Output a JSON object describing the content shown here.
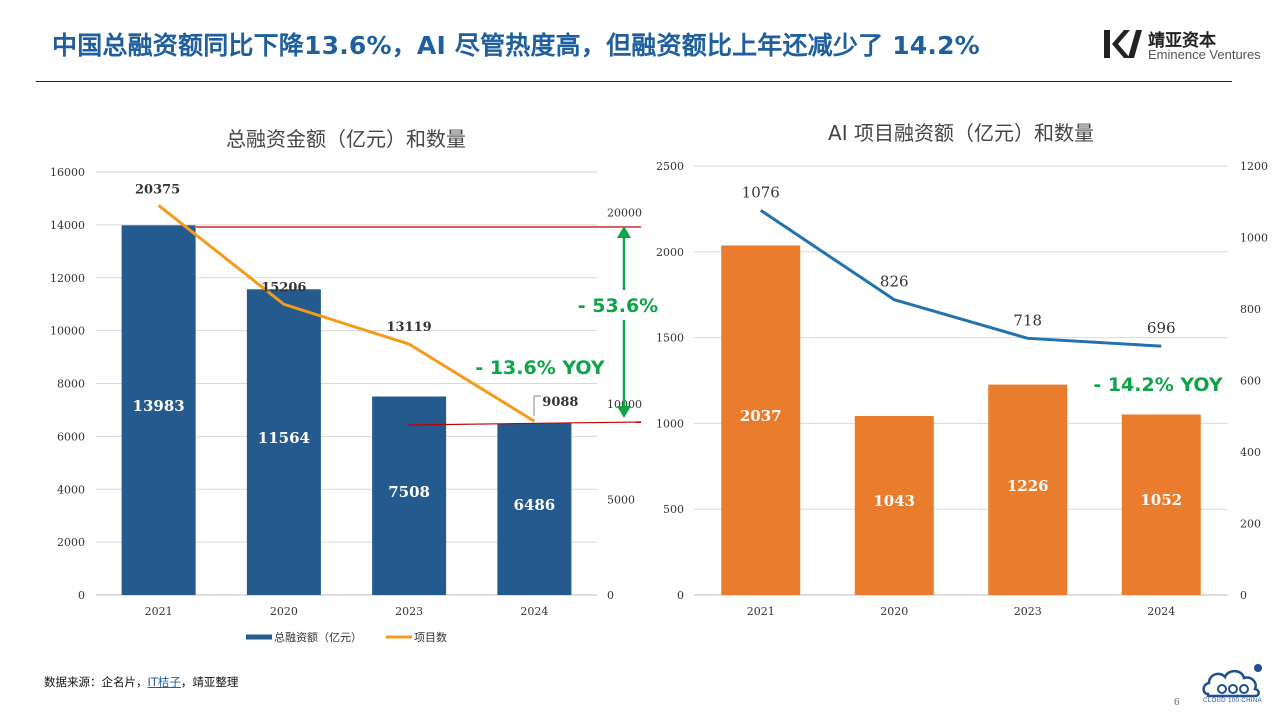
{
  "page": {
    "title": "中国总融资额同比下降13.6%，AI 尽管热度高，但融资额比上年还减少了 14.2%",
    "page_number": "6"
  },
  "logo": {
    "name": "靖亚资本",
    "english": "Eminence Ventures"
  },
  "source": {
    "prefix": "数据来源：企名片，",
    "link": "IT桔子",
    "suffix": "，靖亚整理"
  },
  "cloud_badge": {
    "text": "CLOUD 100 CHINA",
    "accent": "#1f4f8f"
  },
  "chart_data": [
    {
      "type": "bar+line",
      "title": "总融资金额（亿元）和数量",
      "categories": [
        "2021",
        "2020",
        "2023",
        "2024"
      ],
      "bar_series": {
        "name": "总融资额（亿元）",
        "values": [
          13983,
          11564,
          7508,
          6486
        ],
        "color": "#245a8d"
      },
      "line_series": {
        "name": "项目数",
        "values": [
          20375,
          15206,
          13119,
          9088
        ],
        "color": "#f59a1b"
      },
      "left_axis": {
        "ylim": [
          0,
          16000
        ],
        "ticks": [
          0,
          2000,
          4000,
          6000,
          8000,
          10000,
          12000,
          14000,
          16000
        ]
      },
      "right_axis": {
        "ylim": [
          0,
          21600
        ],
        "ticks": [
          0,
          5000,
          10000,
          20000
        ]
      },
      "legend_position": "bottom",
      "reference_lines_color": "#c00000",
      "annotations": [
        {
          "text": "- 53.6%",
          "color": "#11a34a"
        },
        {
          "text": "- 13.6% YOY",
          "color": "#11a34a"
        }
      ],
      "grid": true
    },
    {
      "type": "bar+line",
      "title": "AI 项目融资额（亿元）和数量",
      "categories": [
        "2021",
        "2020",
        "2023",
        "2024"
      ],
      "bar_series": {
        "values": [
          2037,
          1043,
          1226,
          1052
        ],
        "color": "#ea7c2e"
      },
      "line_series": {
        "values": [
          1076,
          826,
          718,
          696
        ],
        "color": "#2272ad"
      },
      "left_axis": {
        "ylim": [
          0,
          2500
        ],
        "ticks": [
          0,
          500,
          1000,
          1500,
          2000,
          2500
        ]
      },
      "right_axis": {
        "ylim": [
          0,
          1200
        ],
        "ticks": [
          0,
          200,
          400,
          600,
          800,
          1000,
          1200
        ]
      },
      "annotations": [
        {
          "text": "- 14.2% YOY",
          "color": "#11a34a"
        }
      ],
      "grid": true
    }
  ]
}
